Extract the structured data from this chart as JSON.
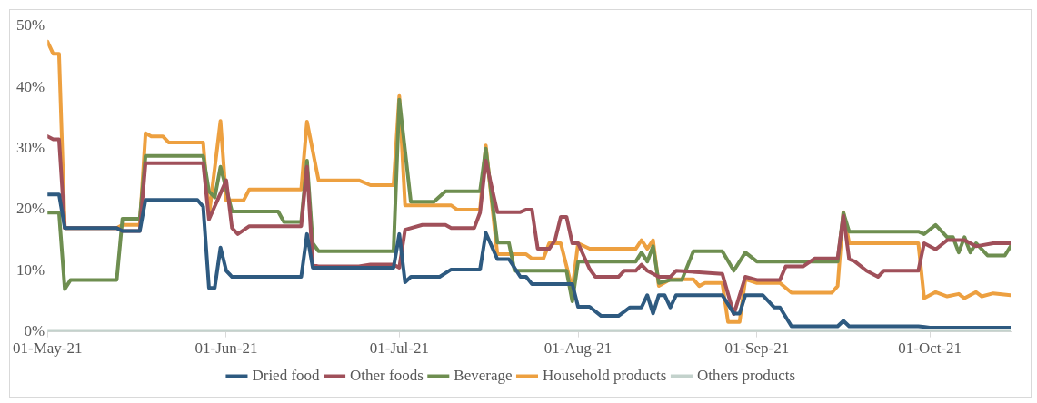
{
  "chart_data": {
    "type": "line",
    "legend": "bottom",
    "xlim": [
      "2021-05-01",
      "2021-10-15"
    ],
    "xticks": [
      {
        "value": "2021-05-01",
        "label": "01-May-21"
      },
      {
        "value": "2021-06-01",
        "label": "01-Jun-21"
      },
      {
        "value": "2021-07-01",
        "label": "01-Jul-21"
      },
      {
        "value": "2021-08-01",
        "label": "01-Aug-21"
      },
      {
        "value": "2021-09-01",
        "label": "01-Sep-21"
      },
      {
        "value": "2021-10-01",
        "label": "01-Oct-21"
      }
    ],
    "ylim": [
      0,
      50
    ],
    "yticks": [
      {
        "value": 0,
        "label": "0%"
      },
      {
        "value": 10,
        "label": "10%"
      },
      {
        "value": 20,
        "label": "20%"
      },
      {
        "value": 30,
        "label": "30%"
      },
      {
        "value": 40,
        "label": "40%"
      },
      {
        "value": 50,
        "label": "50%"
      }
    ],
    "series": [
      {
        "name": "Dried food",
        "color": "#2e5a80",
        "x": [
          "2021-05-01",
          "2021-05-03",
          "2021-05-04",
          "2021-05-13",
          "2021-05-14",
          "2021-05-17",
          "2021-05-18",
          "2021-05-27",
          "2021-05-28",
          "2021-05-29",
          "2021-05-30",
          "2021-05-31",
          "2021-06-01",
          "2021-06-02",
          "2021-06-14",
          "2021-06-15",
          "2021-06-16",
          "2021-06-30",
          "2021-07-01",
          "2021-07-02",
          "2021-07-03",
          "2021-07-08",
          "2021-07-10",
          "2021-07-15",
          "2021-07-16",
          "2021-07-18",
          "2021-07-20",
          "2021-07-22",
          "2021-07-23",
          "2021-07-24",
          "2021-07-31",
          "2021-08-01",
          "2021-08-03",
          "2021-08-05",
          "2021-08-08",
          "2021-08-10",
          "2021-08-12",
          "2021-08-13",
          "2021-08-14",
          "2021-08-15",
          "2021-08-16",
          "2021-08-17",
          "2021-08-18",
          "2021-08-26",
          "2021-08-28",
          "2021-08-29",
          "2021-08-30",
          "2021-09-02",
          "2021-09-04",
          "2021-09-05",
          "2021-09-07",
          "2021-09-15",
          "2021-09-16",
          "2021-09-17",
          "2021-09-29",
          "2021-10-01",
          "2021-10-15"
        ],
        "values": [
          22.5,
          22.5,
          17,
          17,
          16.5,
          16.5,
          21.6,
          21.6,
          20.5,
          7.2,
          7.2,
          13.8,
          10,
          9,
          9,
          16,
          10.5,
          10.5,
          16,
          8.1,
          9,
          9,
          10.2,
          10.2,
          16.2,
          11.9,
          11.9,
          9,
          9,
          7.8,
          7.8,
          4.1,
          4.1,
          2.6,
          2.6,
          4,
          4,
          6,
          3,
          6,
          6,
          4,
          6,
          6,
          3,
          3,
          6,
          6,
          4,
          4,
          0.9,
          0.9,
          1.8,
          0.9,
          0.9,
          0.7,
          0.7
        ]
      },
      {
        "name": "Other foods",
        "color": "#a0505a",
        "x": [
          "2021-05-01",
          "2021-05-02",
          "2021-05-03",
          "2021-05-04",
          "2021-05-13",
          "2021-05-14",
          "2021-05-17",
          "2021-05-18",
          "2021-05-28",
          "2021-05-29",
          "2021-06-01",
          "2021-06-02",
          "2021-06-03",
          "2021-06-05",
          "2021-06-14",
          "2021-06-15",
          "2021-06-16",
          "2021-06-17",
          "2021-06-24",
          "2021-06-26",
          "2021-06-30",
          "2021-07-01",
          "2021-07-02",
          "2021-07-05",
          "2021-07-09",
          "2021-07-10",
          "2021-07-14",
          "2021-07-15",
          "2021-07-16",
          "2021-07-18",
          "2021-07-22",
          "2021-07-23",
          "2021-07-24",
          "2021-07-25",
          "2021-07-27",
          "2021-07-28",
          "2021-07-29",
          "2021-07-30",
          "2021-07-31",
          "2021-08-01",
          "2021-08-03",
          "2021-08-04",
          "2021-08-08",
          "2021-08-09",
          "2021-08-11",
          "2021-08-12",
          "2021-08-13",
          "2021-08-15",
          "2021-08-17",
          "2021-08-18",
          "2021-08-26",
          "2021-08-28",
          "2021-08-30",
          "2021-09-01",
          "2021-09-05",
          "2021-09-06",
          "2021-09-09",
          "2021-09-11",
          "2021-09-15",
          "2021-09-16",
          "2021-09-17",
          "2021-09-18",
          "2021-09-20",
          "2021-09-22",
          "2021-09-23",
          "2021-09-29",
          "2021-09-30",
          "2021-10-02",
          "2021-10-04",
          "2021-10-07",
          "2021-10-09",
          "2021-10-12",
          "2021-10-15"
        ],
        "values": [
          32,
          31.5,
          31.5,
          17,
          17,
          16.5,
          16.5,
          27.6,
          27.6,
          18.4,
          24.8,
          17,
          16,
          17.3,
          17.3,
          27,
          11,
          10.7,
          10.7,
          11,
          11,
          10.5,
          16.7,
          17.5,
          17.5,
          17,
          17,
          19.5,
          28,
          19.6,
          19.6,
          20,
          20,
          13.6,
          13.6,
          15,
          18.8,
          18.8,
          14.5,
          14.5,
          10.3,
          9,
          9,
          10,
          10,
          11,
          10,
          9,
          9,
          10,
          9.5,
          2.9,
          9,
          8.5,
          8.5,
          10.7,
          10.7,
          12,
          12,
          19,
          11.9,
          11.5,
          10,
          9,
          10,
          10,
          14.5,
          13.5,
          15,
          15,
          14,
          14.5,
          14.5
        ]
      },
      {
        "name": "Beverage",
        "color": "#6e8e50",
        "x": [
          "2021-05-01",
          "2021-05-03",
          "2021-05-04",
          "2021-05-05",
          "2021-05-13",
          "2021-05-14",
          "2021-05-17",
          "2021-05-18",
          "2021-05-28",
          "2021-05-29",
          "2021-05-30",
          "2021-05-31",
          "2021-06-02",
          "2021-06-10",
          "2021-06-11",
          "2021-06-14",
          "2021-06-15",
          "2021-06-16",
          "2021-06-17",
          "2021-06-30",
          "2021-07-01",
          "2021-07-03",
          "2021-07-07",
          "2021-07-09",
          "2021-07-15",
          "2021-07-16",
          "2021-07-18",
          "2021-07-20",
          "2021-07-21",
          "2021-07-30",
          "2021-07-31",
          "2021-08-01",
          "2021-08-11",
          "2021-08-12",
          "2021-08-13",
          "2021-08-14",
          "2021-08-15",
          "2021-08-17",
          "2021-08-19",
          "2021-08-21",
          "2021-08-26",
          "2021-08-28",
          "2021-08-30",
          "2021-09-01",
          "2021-09-15",
          "2021-09-16",
          "2021-09-17",
          "2021-09-29",
          "2021-09-30",
          "2021-10-02",
          "2021-10-04",
          "2021-10-05",
          "2021-10-06",
          "2021-10-07",
          "2021-10-08",
          "2021-10-09",
          "2021-10-11",
          "2021-10-14",
          "2021-10-15"
        ],
        "values": [
          19.5,
          19.5,
          7,
          8.5,
          8.5,
          18.5,
          18.5,
          28.8,
          28.8,
          23,
          22,
          27,
          19.7,
          19.7,
          18,
          18,
          28,
          14.5,
          13.2,
          13.2,
          38,
          21.3,
          21.3,
          23,
          23,
          30,
          14.6,
          14.6,
          10,
          10,
          5,
          11.5,
          11.5,
          13,
          11.5,
          14,
          8,
          8.5,
          8.5,
          13.2,
          13.2,
          10,
          13,
          11.5,
          11.5,
          19.5,
          16.4,
          16.4,
          16,
          17.5,
          15.5,
          15.5,
          13,
          15.5,
          13,
          14.5,
          12.5,
          12.5,
          14
        ]
      },
      {
        "name": "Household products",
        "color": "#eda040",
        "x": [
          "2021-05-01",
          "2021-05-02",
          "2021-05-03",
          "2021-05-04",
          "2021-05-13",
          "2021-05-14",
          "2021-05-17",
          "2021-05-18",
          "2021-05-19",
          "2021-05-21",
          "2021-05-22",
          "2021-05-28",
          "2021-05-29",
          "2021-05-31",
          "2021-06-01",
          "2021-06-04",
          "2021-06-05",
          "2021-06-14",
          "2021-06-15",
          "2021-06-17",
          "2021-06-24",
          "2021-06-26",
          "2021-06-30",
          "2021-07-01",
          "2021-07-02",
          "2021-07-10",
          "2021-07-11",
          "2021-07-15",
          "2021-07-16",
          "2021-07-18",
          "2021-07-23",
          "2021-07-24",
          "2021-07-26",
          "2021-07-27",
          "2021-07-29",
          "2021-07-31",
          "2021-08-01",
          "2021-08-03",
          "2021-08-11",
          "2021-08-12",
          "2021-08-13",
          "2021-08-14",
          "2021-08-15",
          "2021-08-17",
          "2021-08-21",
          "2021-08-22",
          "2021-08-23",
          "2021-08-26",
          "2021-08-27",
          "2021-08-29",
          "2021-08-30",
          "2021-09-01",
          "2021-09-05",
          "2021-09-07",
          "2021-09-14",
          "2021-09-15",
          "2021-09-16",
          "2021-09-17",
          "2021-09-29",
          "2021-09-30",
          "2021-10-02",
          "2021-10-04",
          "2021-10-06",
          "2021-10-07",
          "2021-10-09",
          "2021-10-10",
          "2021-10-12",
          "2021-10-15"
        ],
        "values": [
          47.5,
          45.5,
          45.5,
          17,
          17,
          17.5,
          17.5,
          32.5,
          32,
          32,
          31,
          31,
          19,
          34.5,
          21.5,
          21.5,
          23.3,
          23.3,
          34.4,
          24.8,
          24.8,
          24,
          24,
          38.6,
          20.7,
          20.7,
          20,
          20,
          30.5,
          12.7,
          12.7,
          12,
          12,
          14.5,
          14.5,
          7,
          14.5,
          13.6,
          13.6,
          15,
          13.6,
          15,
          7.5,
          8.6,
          8.6,
          7.5,
          8,
          8,
          1.6,
          1.6,
          8.6,
          8,
          8,
          6.4,
          6.4,
          7.5,
          19.6,
          14.5,
          14.5,
          5.5,
          6.5,
          5.8,
          6.2,
          5.5,
          6.5,
          5.8,
          6.3,
          6
        ]
      },
      {
        "name": "Others products",
        "color": "#c3d2cc",
        "x": [
          "2021-05-01",
          "2021-06-01",
          "2021-07-01",
          "2021-08-01",
          "2021-09-01",
          "2021-10-01",
          "2021-10-15"
        ],
        "values": [
          0,
          0,
          0,
          0,
          0,
          0,
          0
        ]
      }
    ]
  }
}
